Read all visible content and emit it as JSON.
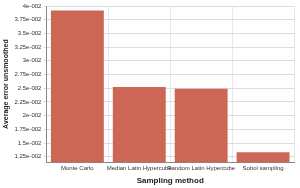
{
  "chart_data": {
    "type": "bar",
    "xlabel": "Sampling method",
    "ylabel": "Average error unsmoothed",
    "categories": [
      "Monte Carlo",
      "Median Latin Hypercube",
      "Random Latin Hypercube",
      "Sobol sampling"
    ],
    "values": [
      0.0392,
      0.0252,
      0.0249,
      0.0133
    ],
    "color": "#cc6655",
    "ylim": [
      0.0115,
      0.04
    ],
    "yticks": [
      {
        "value": 0.0125,
        "label": "1.25e-002"
      },
      {
        "value": 0.015,
        "label": "1.5e-002"
      },
      {
        "value": 0.0175,
        "label": "1.75e-002"
      },
      {
        "value": 0.02,
        "label": "2e-002"
      },
      {
        "value": 0.0225,
        "label": "2.25e-002"
      },
      {
        "value": 0.025,
        "label": "2.5e-002"
      },
      {
        "value": 0.0275,
        "label": "2.75e-002"
      },
      {
        "value": 0.03,
        "label": "3e-002"
      },
      {
        "value": 0.0325,
        "label": "3.25e-002"
      },
      {
        "value": 0.035,
        "label": "3.5e-002"
      },
      {
        "value": 0.0375,
        "label": "3.75e-002"
      },
      {
        "value": 0.04,
        "label": "4e-002"
      }
    ],
    "grid": true
  }
}
